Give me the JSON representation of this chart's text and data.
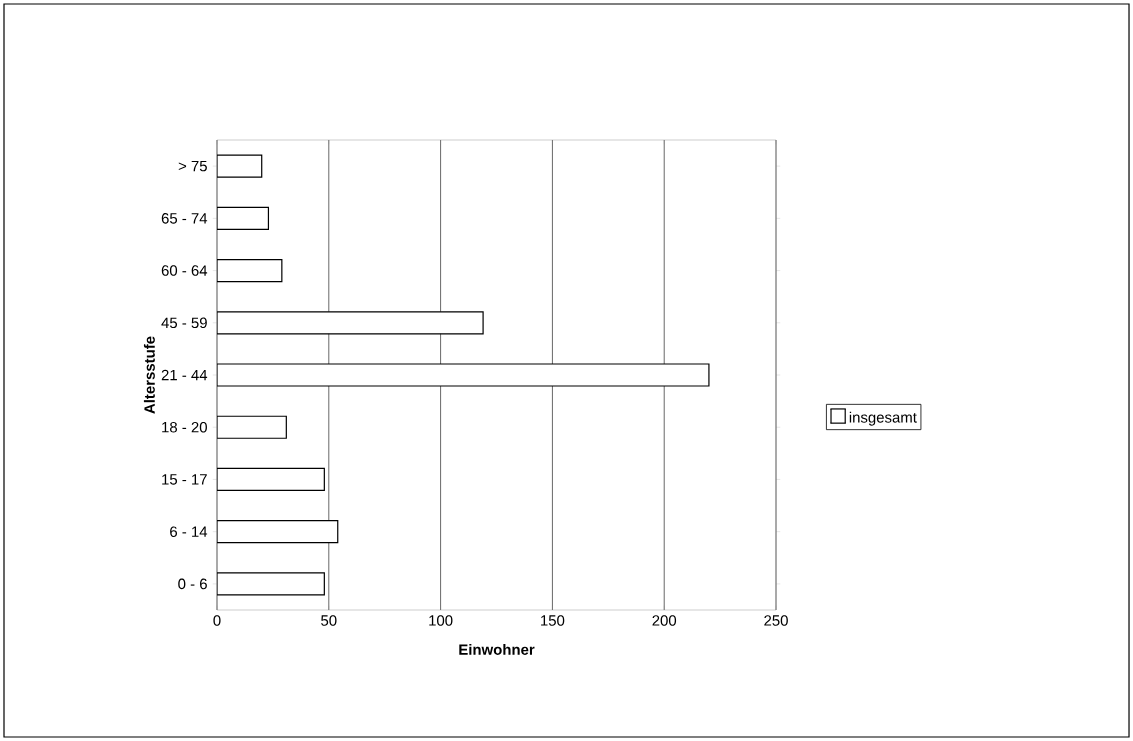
{
  "chart_data": {
    "type": "bar",
    "orientation": "horizontal",
    "xlabel": "Einwohner",
    "ylabel": "Altersstufe",
    "categories": [
      "> 75",
      "65 - 74",
      "60 - 64",
      "45 - 59",
      "21 - 44",
      "18 - 20",
      "15 - 17",
      "6 - 14",
      "0 - 6"
    ],
    "series": [
      {
        "name": "insgesamt",
        "color": "#ffffff",
        "values": [
          20,
          23,
          29,
          119,
          220,
          31,
          48,
          54,
          48
        ]
      }
    ],
    "xlim": [
      0,
      250
    ],
    "xticks": [
      0,
      50,
      100,
      150,
      200,
      250
    ],
    "grid": "x",
    "legend": "right"
  }
}
